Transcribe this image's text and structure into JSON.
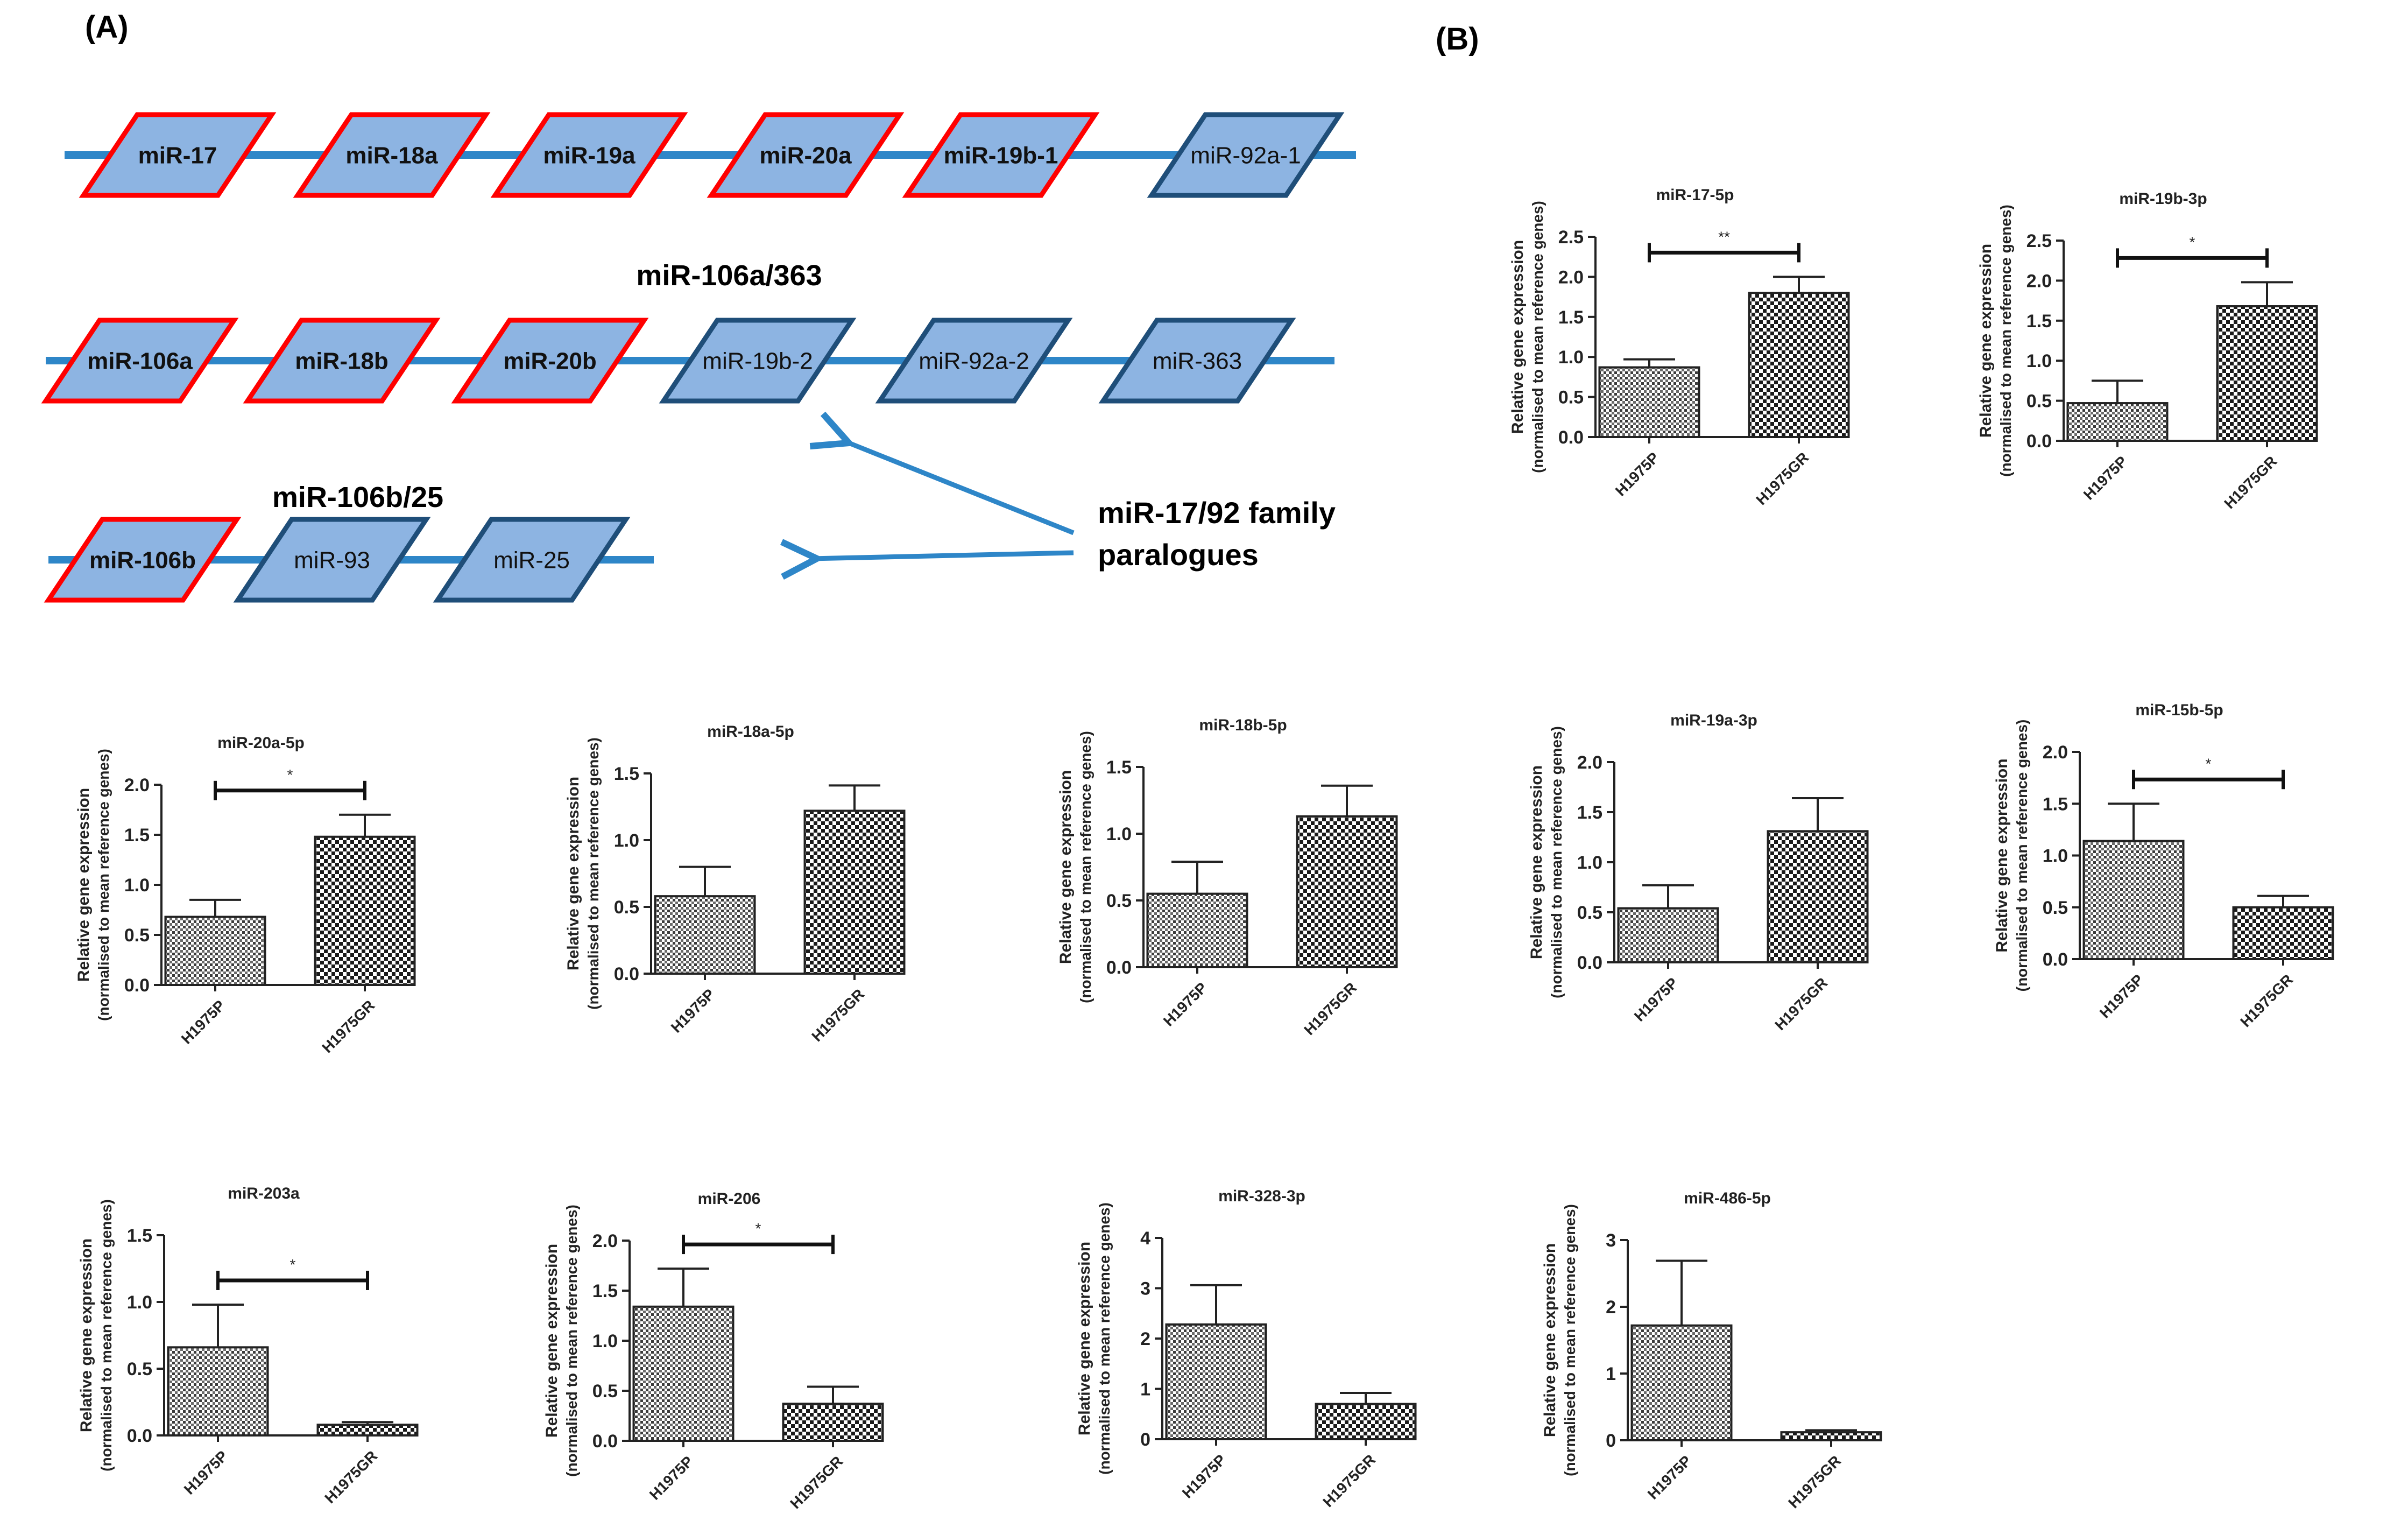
{
  "figure": {
    "panel_a_label": "(A)",
    "panel_b_label": "(B)",
    "cluster_1_title": "",
    "cluster_2_title": "miR-106a/363",
    "cluster_3_title": "miR-106b/25",
    "paralogue_note_line1": "miR-17/92 family",
    "paralogue_note_line2": "paralogues",
    "clusters": [
      {
        "members": [
          {
            "label": "miR-17",
            "highlighted": true
          },
          {
            "label": "miR-18a",
            "highlighted": true
          },
          {
            "label": "miR-19a",
            "highlighted": true
          },
          {
            "label": "miR-20a",
            "highlighted": true
          },
          {
            "label": "miR-19b-1",
            "highlighted": true
          },
          {
            "label": "miR-92a-1",
            "highlighted": false
          }
        ]
      },
      {
        "members": [
          {
            "label": "miR-106a",
            "highlighted": true
          },
          {
            "label": "miR-18b",
            "highlighted": true
          },
          {
            "label": "miR-20b",
            "highlighted": true
          },
          {
            "label": "miR-19b-2",
            "highlighted": false
          },
          {
            "label": "miR-92a-2",
            "highlighted": false
          },
          {
            "label": "miR-363",
            "highlighted": false
          }
        ]
      },
      {
        "members": [
          {
            "label": "miR-106b",
            "highlighted": true
          },
          {
            "label": "miR-93",
            "highlighted": false
          },
          {
            "label": "miR-25",
            "highlighted": false
          }
        ]
      }
    ],
    "colors": {
      "backbone": "#2e86c8",
      "box_fill": "#8db4e2",
      "highlight_border": "#ff0000",
      "normal_border": "#1f4e79",
      "arrow": "#2e86c8",
      "bar_pattern_dark": "#1a1a1a",
      "bar_pattern_light": "#ffffff"
    }
  },
  "chart_data": [
    {
      "type": "bar",
      "title": "miR-17-5p",
      "categories": [
        "H1975P",
        "H1975GR"
      ],
      "values": [
        0.87,
        1.8
      ],
      "errors": [
        0.1,
        0.2
      ],
      "ylim": [
        0,
        2.5
      ],
      "yticks": [
        "0.0",
        "0.5",
        "1.0",
        "1.5",
        "2.0",
        "2.5"
      ],
      "ylabel": "Relative gene expression",
      "ylabel2": "(normalised to mean reference genes)",
      "significance": "**"
    },
    {
      "type": "bar",
      "title": "miR-19b-3p",
      "categories": [
        "H1975P",
        "H1975GR"
      ],
      "values": [
        0.47,
        1.68
      ],
      "errors": [
        0.28,
        0.3
      ],
      "ylim": [
        0,
        2.5
      ],
      "yticks": [
        "0.0",
        "0.5",
        "1.0",
        "1.5",
        "2.0",
        "2.5"
      ],
      "ylabel": "Relative gene expression",
      "ylabel2": "(normalised to mean reference genes)",
      "significance": "*"
    },
    {
      "type": "bar",
      "title": "miR-20a-5p",
      "categories": [
        "H1975P",
        "H1975GR"
      ],
      "values": [
        0.68,
        1.48
      ],
      "errors": [
        0.17,
        0.22
      ],
      "ylim": [
        0,
        2.0
      ],
      "yticks": [
        "0.0",
        "0.5",
        "1.0",
        "1.5",
        "2.0"
      ],
      "ylabel": "Relative gene expression",
      "ylabel2": "(normalised to mean reference genes)",
      "significance": "*"
    },
    {
      "type": "bar",
      "title": "miR-18a-5p",
      "categories": [
        "H1975P",
        "H1975GR"
      ],
      "values": [
        0.58,
        1.22
      ],
      "errors": [
        0.22,
        0.19
      ],
      "ylim": [
        0,
        1.5
      ],
      "yticks": [
        "0.0",
        "0.5",
        "1.0",
        "1.5"
      ],
      "ylabel": "Relative gene expression",
      "ylabel2": "(normalised to mean reference genes)",
      "significance": ""
    },
    {
      "type": "bar",
      "title": "miR-18b-5p",
      "categories": [
        "H1975P",
        "H1975GR"
      ],
      "values": [
        0.55,
        1.13
      ],
      "errors": [
        0.24,
        0.23
      ],
      "ylim": [
        0,
        1.5
      ],
      "yticks": [
        "0.0",
        "0.5",
        "1.0",
        "1.5"
      ],
      "ylabel": "Relative gene expression",
      "ylabel2": "(normalised to mean reference genes)",
      "significance": ""
    },
    {
      "type": "bar",
      "title": "miR-19a-3p",
      "categories": [
        "H1975P",
        "H1975GR"
      ],
      "values": [
        0.54,
        1.31
      ],
      "errors": [
        0.23,
        0.33
      ],
      "ylim": [
        0,
        2.0
      ],
      "yticks": [
        "0.0",
        "0.5",
        "1.0",
        "1.5",
        "2.0"
      ],
      "ylabel": "Relative gene expression",
      "ylabel2": "(normalised to mean reference genes)",
      "significance": ""
    },
    {
      "type": "bar",
      "title": "miR-15b-5p",
      "categories": [
        "H1975P",
        "H1975GR"
      ],
      "values": [
        1.14,
        0.5
      ],
      "errors": [
        0.36,
        0.11
      ],
      "ylim": [
        0,
        2.0
      ],
      "yticks": [
        "0.0",
        "0.5",
        "1.0",
        "1.5",
        "2.0"
      ],
      "ylabel": "Relative gene expression",
      "ylabel2": "(normalised to mean reference genes)",
      "significance": "*"
    },
    {
      "type": "bar",
      "title": "miR-203a",
      "categories": [
        "H1975P",
        "H1975GR"
      ],
      "values": [
        0.66,
        0.08
      ],
      "errors": [
        0.32,
        0.02
      ],
      "ylim": [
        0,
        1.5
      ],
      "yticks": [
        "0.0",
        "0.5",
        "1.0",
        "1.5"
      ],
      "ylabel": "Relative gene expression",
      "ylabel2": "(normalised to mean reference genes)",
      "significance": "*"
    },
    {
      "type": "bar",
      "title": "miR-206",
      "categories": [
        "H1975P",
        "H1975GR"
      ],
      "values": [
        1.34,
        0.37
      ],
      "errors": [
        0.38,
        0.17
      ],
      "ylim": [
        0,
        2.0
      ],
      "yticks": [
        "0.0",
        "0.5",
        "1.0",
        "1.5",
        "2.0"
      ],
      "ylabel": "Relative gene expression",
      "ylabel2": "(normalised to mean reference genes)",
      "significance": "*"
    },
    {
      "type": "bar",
      "title": "miR-328-3p",
      "categories": [
        "H1975P",
        "H1975GR"
      ],
      "values": [
        2.28,
        0.7
      ],
      "errors": [
        0.78,
        0.22
      ],
      "ylim": [
        0,
        4
      ],
      "yticks": [
        "0",
        "1",
        "2",
        "3",
        "4"
      ],
      "ylabel": "Relative gene expression",
      "ylabel2": "(normalised to mean reference genes)",
      "significance": ""
    },
    {
      "type": "bar",
      "title": "miR-486-5p",
      "categories": [
        "H1975P",
        "H1975GR"
      ],
      "values": [
        1.72,
        0.12
      ],
      "errors": [
        0.97,
        0.03
      ],
      "ylim": [
        0,
        3
      ],
      "yticks": [
        "0",
        "1",
        "2",
        "3"
      ],
      "ylabel": "Relative gene expression",
      "ylabel2": "(normalised to mean reference genes)",
      "significance": ""
    }
  ]
}
